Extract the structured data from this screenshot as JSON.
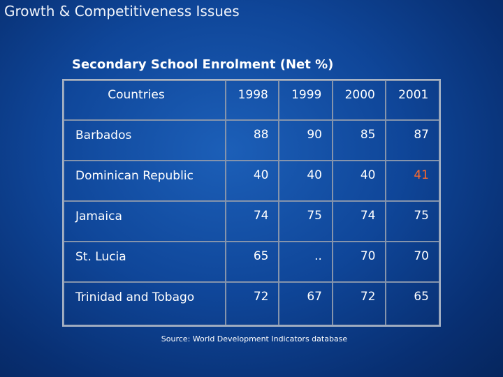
{
  "slide": {
    "title": "Growth & Competitiveness Issues"
  },
  "table": {
    "title": "Secondary School Enrolment (Net %)",
    "headers": [
      "Countries",
      "1998",
      "1999",
      "2000",
      "2001"
    ],
    "rows": [
      {
        "country": "Barbados",
        "values": [
          "88",
          "90",
          "85",
          "87"
        ]
      },
      {
        "country": "Dominican Republic",
        "values": [
          "40",
          "40",
          "40",
          "41"
        ]
      },
      {
        "country": "Jamaica",
        "values": [
          "74",
          "75",
          "74",
          "75"
        ]
      },
      {
        "country": "St. Lucia",
        "values": [
          "65",
          "..",
          "70",
          "70"
        ]
      },
      {
        "country": "Trinidad and Tobago",
        "values": [
          "72",
          "67",
          "72",
          "65"
        ]
      }
    ],
    "highlight_color": "#ff6a2a"
  },
  "source": "Source: World Development Indicators database",
  "colors": {
    "background": "#0f4699",
    "text": "#ffffff"
  }
}
